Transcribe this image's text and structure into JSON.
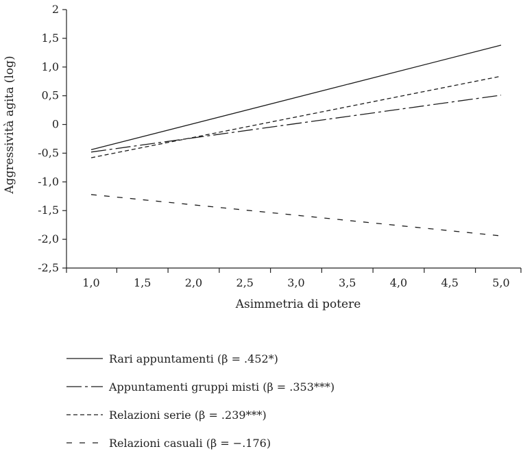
{
  "chart_data": {
    "type": "line",
    "xlabel": "Asimmetria di potere",
    "ylabel": "Aggressività agita (log)",
    "xlim": [
      1.0,
      5.0
    ],
    "ylim": [
      -2.5,
      2.0
    ],
    "xticks": [
      1.0,
      1.5,
      2.0,
      2.5,
      3.0,
      3.5,
      4.0,
      4.5,
      5.0
    ],
    "xtick_labels": [
      "1,0",
      "1,5",
      "2,0",
      "2,5",
      "3,0",
      "3,5",
      "4,0",
      "4,5",
      "5,0"
    ],
    "yticks": [
      2.0,
      1.5,
      1.0,
      0.5,
      0.0,
      -0.5,
      -1.0,
      -1.5,
      -2.0,
      -2.5
    ],
    "ytick_labels": [
      "2",
      "1,5",
      "1,0",
      "0,5",
      "0",
      "-0,5",
      "-1,0",
      "-1,5",
      "-2,0",
      "-2,5"
    ],
    "grid": false,
    "legend_position": "bottom",
    "series": [
      {
        "name": "Rari appuntamenti (β = .452*)",
        "style": "solid",
        "x": [
          1.0,
          5.0
        ],
        "y": [
          -0.44,
          1.38
        ]
      },
      {
        "name": "Appuntamenti gruppi misti (β = .353***)",
        "style": "dash-dot",
        "x": [
          1.0,
          5.0
        ],
        "y": [
          -0.48,
          0.51
        ]
      },
      {
        "name": "Relazioni serie (β = .239***)",
        "style": "short-dash",
        "x": [
          1.0,
          5.0
        ],
        "y": [
          -0.58,
          0.84
        ]
      },
      {
        "name": "Relazioni casuali (β = −.176)",
        "style": "long-dash",
        "x": [
          1.0,
          5.0
        ],
        "y": [
          -1.22,
          -1.94
        ]
      }
    ]
  },
  "styles": {
    "line_color": "#1a1a1a",
    "axis_color": "#222222"
  }
}
